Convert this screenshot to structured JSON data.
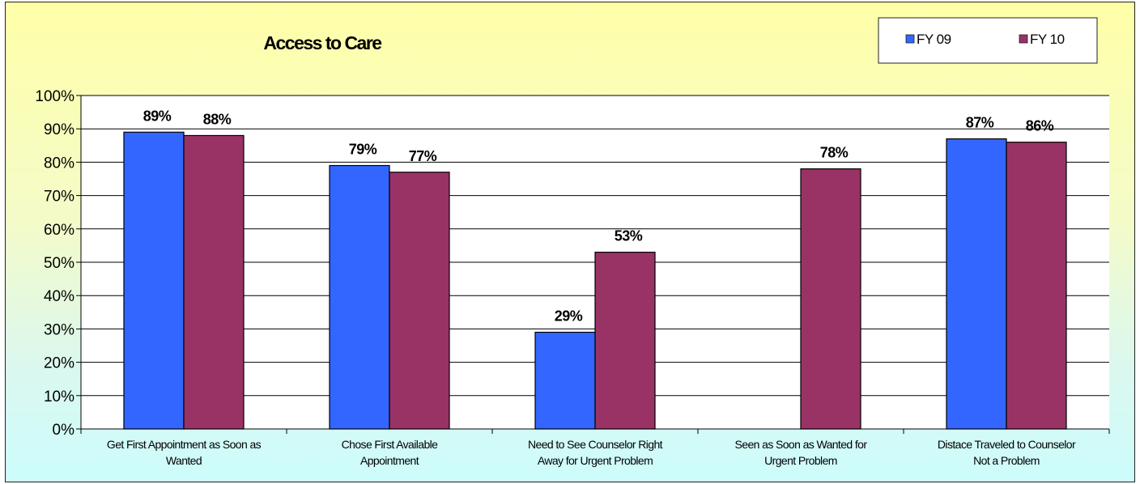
{
  "chart_data": {
    "type": "bar",
    "title": "Access to Care",
    "xlabel": "",
    "ylabel": "",
    "ylim": [
      0,
      100
    ],
    "y_ticks": [
      "0%",
      "10%",
      "20%",
      "30%",
      "40%",
      "50%",
      "60%",
      "70%",
      "80%",
      "90%",
      "100%"
    ],
    "categories": [
      [
        "Get First Appointment as Soon as",
        "Wanted"
      ],
      [
        "Chose First Available",
        "Appointment"
      ],
      [
        "Need to See Counselor Right",
        "Away for Urgent Problem"
      ],
      [
        "Seen as Soon as Wanted for",
        "Urgent Problem"
      ],
      [
        "Distace Traveled to Counselor",
        "Not a Problem"
      ]
    ],
    "series": [
      {
        "name": "FY 09",
        "color": "#3366ff",
        "values": [
          89,
          79,
          29,
          null,
          87
        ]
      },
      {
        "name": "FY 10",
        "color": "#993366",
        "values": [
          88,
          77,
          53,
          78,
          86
        ]
      }
    ],
    "data_label_suffix": "%",
    "grid": true,
    "legend_position": "top-right"
  }
}
